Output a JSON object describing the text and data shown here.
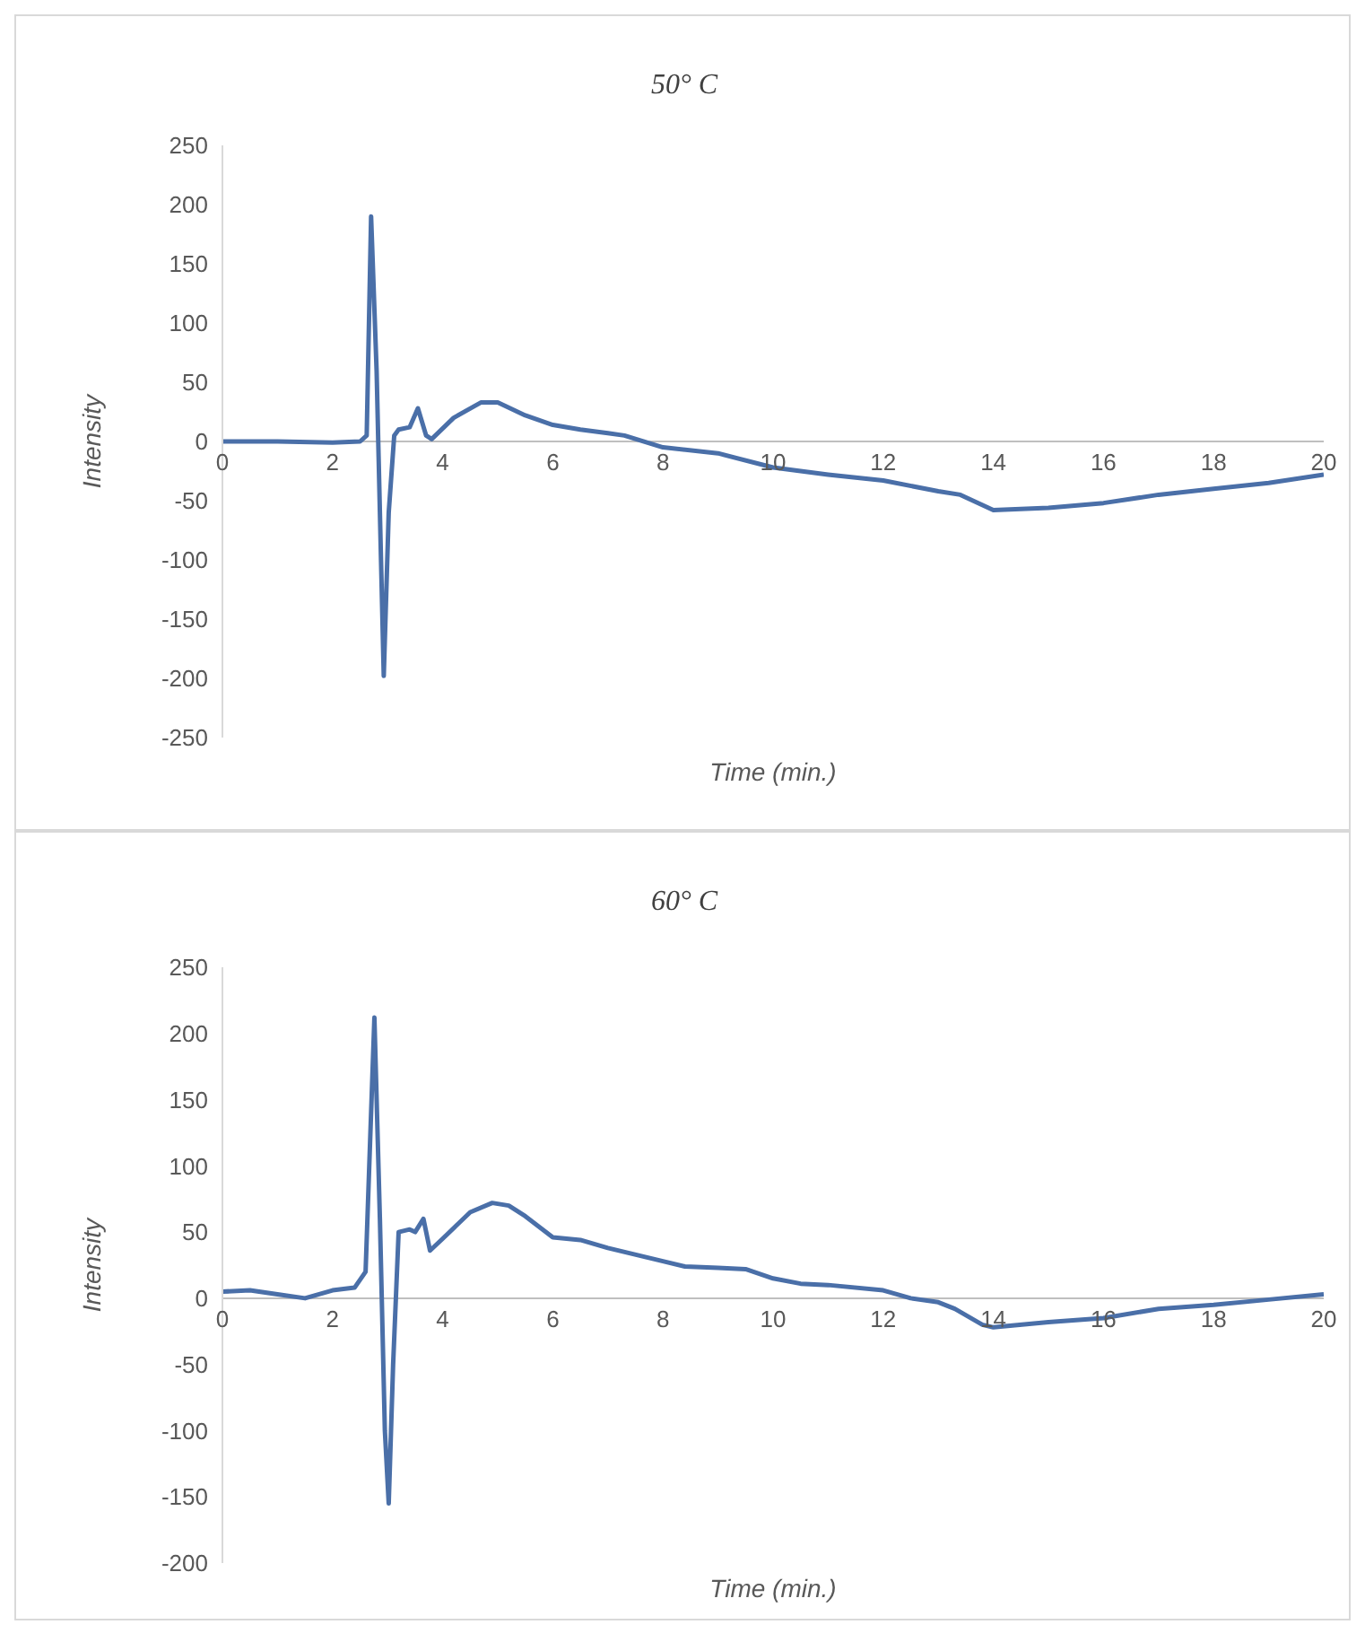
{
  "chart_data": [
    {
      "type": "line",
      "title": "50° C",
      "xlabel": "Time (min.)",
      "ylabel": "Intensity",
      "color": "#4a6fa8",
      "xlim": [
        0,
        20
      ],
      "xticks": [
        0,
        2,
        4,
        6,
        8,
        10,
        12,
        14,
        16,
        18,
        20
      ],
      "ylim": [
        -250,
        250
      ],
      "yticks": [
        -250,
        -200,
        -150,
        -100,
        -50,
        0,
        50,
        100,
        150,
        200,
        250
      ],
      "x": [
        0,
        1,
        2,
        2.5,
        2.62,
        2.7,
        2.8,
        2.88,
        2.93,
        3.02,
        3.12,
        3.2,
        3.4,
        3.55,
        3.7,
        3.8,
        4.2,
        4.7,
        5.0,
        5.5,
        6,
        6.5,
        7,
        7.3,
        8,
        9,
        10,
        11,
        12,
        13,
        13.4,
        14,
        15,
        16,
        17,
        18,
        19,
        20
      ],
      "values": [
        0,
        0,
        -1,
        0,
        5,
        190,
        60,
        -100,
        -198,
        -60,
        5,
        10,
        12,
        28,
        5,
        2,
        20,
        33,
        33,
        22,
        14,
        10,
        7,
        5,
        -5,
        -10,
        -22,
        -28,
        -33,
        -42,
        -45,
        -58,
        -56,
        -52,
        -45,
        -40,
        -35,
        -28
      ]
    },
    {
      "type": "line",
      "title": "60° C",
      "xlabel": "Time (min.)",
      "ylabel": "Intensity",
      "color": "#4a6fa8",
      "xlim": [
        0,
        20
      ],
      "xticks": [
        0,
        2,
        4,
        6,
        8,
        10,
        12,
        14,
        16,
        18,
        20
      ],
      "ylim": [
        -200,
        250
      ],
      "yticks": [
        -200,
        -150,
        -100,
        -50,
        0,
        50,
        100,
        150,
        200,
        250
      ],
      "x": [
        0,
        0.5,
        1,
        1.5,
        2,
        2.4,
        2.6,
        2.76,
        2.86,
        2.95,
        3.02,
        3.1,
        3.2,
        3.4,
        3.5,
        3.65,
        3.77,
        4.0,
        4.5,
        4.9,
        5.2,
        5.5,
        6,
        6.5,
        7,
        8,
        8.4,
        9,
        9.5,
        10,
        10.5,
        11,
        12,
        12.5,
        13,
        13.3,
        13.8,
        14,
        15,
        16,
        17,
        18,
        19,
        20
      ],
      "values": [
        5,
        6,
        3,
        0,
        6,
        8,
        20,
        212,
        60,
        -100,
        -155,
        -50,
        50,
        52,
        50,
        60,
        36,
        45,
        65,
        72,
        70,
        62,
        46,
        44,
        38,
        28,
        24,
        23,
        22,
        15,
        11,
        10,
        6,
        0,
        -3,
        -8,
        -20,
        -22,
        -18,
        -15,
        -8,
        -5,
        -1,
        3
      ]
    }
  ]
}
